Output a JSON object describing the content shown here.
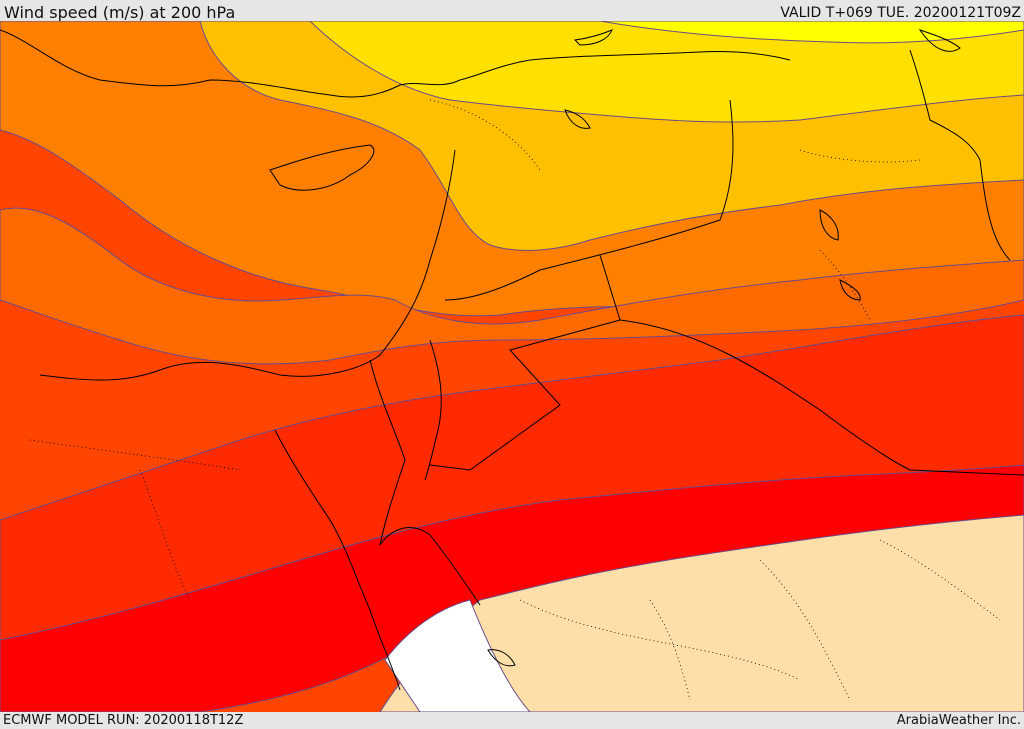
{
  "header": {
    "title": "Wind speed (m/s) at 200 hPa",
    "valid": "VALID T+069 TUE. 20200121T09Z"
  },
  "footer": {
    "model_run": "ECMWF MODEL RUN: 20200118T12Z",
    "brand": "ArabiaWeather Inc."
  },
  "map": {
    "variable": "wind speed",
    "level_hpa": 200,
    "units": "m/s",
    "colors": {
      "yellow": "#ffff00",
      "gold": "#ffe000",
      "amber": "#ffc000",
      "orange": "#ff8000",
      "dark_orange": "#ff6a00",
      "orange_red": "#ff4500",
      "red_orange": "#ff2a00",
      "red": "#ff0000",
      "tan": "#fedfaa",
      "white": "#ffffff",
      "contour": "#6a4a8a",
      "coast": "#000000"
    }
  }
}
